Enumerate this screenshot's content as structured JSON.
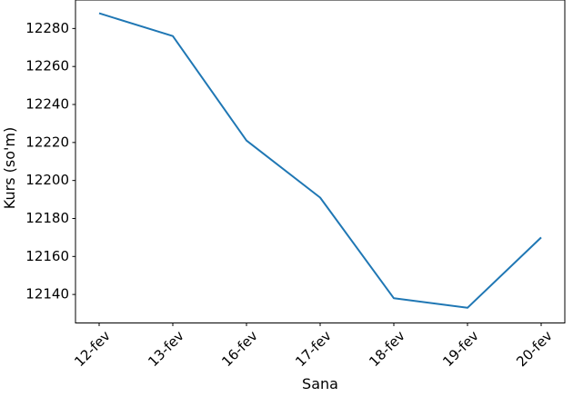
{
  "chart_data": {
    "type": "line",
    "title": "",
    "xlabel": "Sana",
    "ylabel": "Kurs (so'm)",
    "categories": [
      "12-fev",
      "13-fev",
      "16-fev",
      "17-fev",
      "18-fev",
      "19-fev",
      "20-fev"
    ],
    "values": [
      12288,
      12276,
      12221,
      12191,
      12138,
      12133,
      12170
    ],
    "yticks": [
      12140,
      12160,
      12180,
      12200,
      12220,
      12240,
      12260,
      12280
    ],
    "ylim": [
      12125,
      12295
    ],
    "grid": false,
    "legend": "none",
    "xtick_rotation": 45,
    "line_color": "#1f77b4",
    "axis_color": "#000000",
    "text_color": "#000000",
    "background": "#ffffff"
  }
}
